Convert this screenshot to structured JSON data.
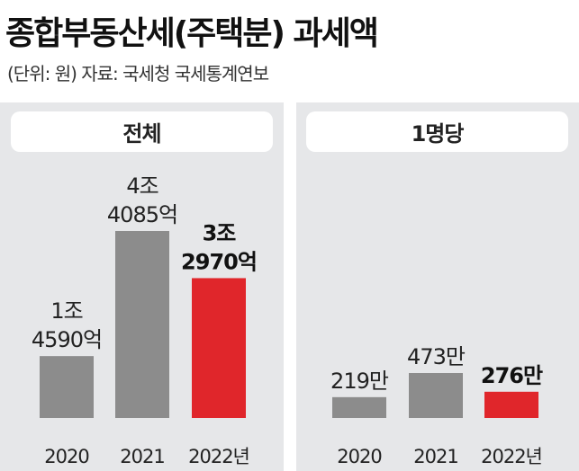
{
  "title": "종합부동산세(주택분) 과세액",
  "subtitle": "(단위: 원) 자료: 국세청 국세통계연보",
  "colors": {
    "gray_bar": "#8c8c8c",
    "red_bar": "#e0262b",
    "panel_bg": "#e6e7e9"
  },
  "chart_data": [
    {
      "type": "bar",
      "title": "전체",
      "categories": [
        "2020",
        "2021",
        "2022년"
      ],
      "values": [
        1459000000000,
        4408500000000,
        3297000000000
      ],
      "value_labels": [
        [
          "1조",
          "4590억"
        ],
        [
          "4조",
          "4085억"
        ],
        [
          "3조",
          "2970억"
        ]
      ],
      "highlight_index": 2,
      "ylim": [
        0,
        4408500000000
      ]
    },
    {
      "type": "bar",
      "title": "1명당",
      "categories": [
        "2020",
        "2021",
        "2022년"
      ],
      "values": [
        2190000,
        4730000,
        2760000
      ],
      "value_labels": [
        [
          "219만"
        ],
        [
          "473만"
        ],
        [
          "276만"
        ]
      ],
      "highlight_index": 2,
      "ylim": [
        0,
        4730000
      ]
    }
  ]
}
